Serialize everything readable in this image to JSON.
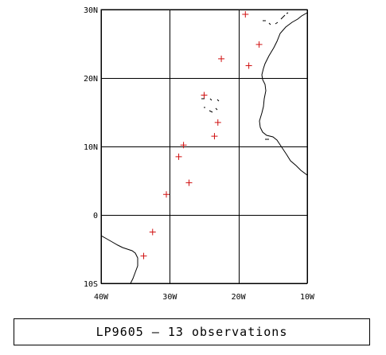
{
  "caption": "LP9605 — 13 observations",
  "colors": {
    "frame": "#000000",
    "marker": "#d01010",
    "coast": "#000000"
  },
  "map": {
    "lon_range": [
      -40,
      -10
    ],
    "lat_range": [
      -10,
      30
    ],
    "lon_ticks": [
      {
        "value": -40,
        "label": "40W"
      },
      {
        "value": -30,
        "label": "30W"
      },
      {
        "value": -20,
        "label": "20W"
      },
      {
        "value": -10,
        "label": "10W"
      }
    ],
    "lat_ticks": [
      {
        "value": 30,
        "label": "30N"
      },
      {
        "value": 20,
        "label": "20N"
      },
      {
        "value": 10,
        "label": "10N"
      },
      {
        "value": 0,
        "label": "0"
      },
      {
        "value": -10,
        "label": "10S"
      }
    ],
    "observations": [
      {
        "lon": -19.0,
        "lat": 29.3
      },
      {
        "lon": -17.0,
        "lat": 24.9
      },
      {
        "lon": -22.5,
        "lat": 22.8
      },
      {
        "lon": -18.5,
        "lat": 21.8
      },
      {
        "lon": -25.0,
        "lat": 17.5
      },
      {
        "lon": -23.0,
        "lat": 13.5
      },
      {
        "lon": -23.5,
        "lat": 11.5
      },
      {
        "lon": -28.0,
        "lat": 10.2
      },
      {
        "lon": -28.7,
        "lat": 8.5
      },
      {
        "lon": -27.2,
        "lat": 4.7
      },
      {
        "lon": -30.5,
        "lat": 3.0
      },
      {
        "lon": -32.5,
        "lat": -2.5
      },
      {
        "lon": -33.8,
        "lat": -6.0
      }
    ]
  }
}
